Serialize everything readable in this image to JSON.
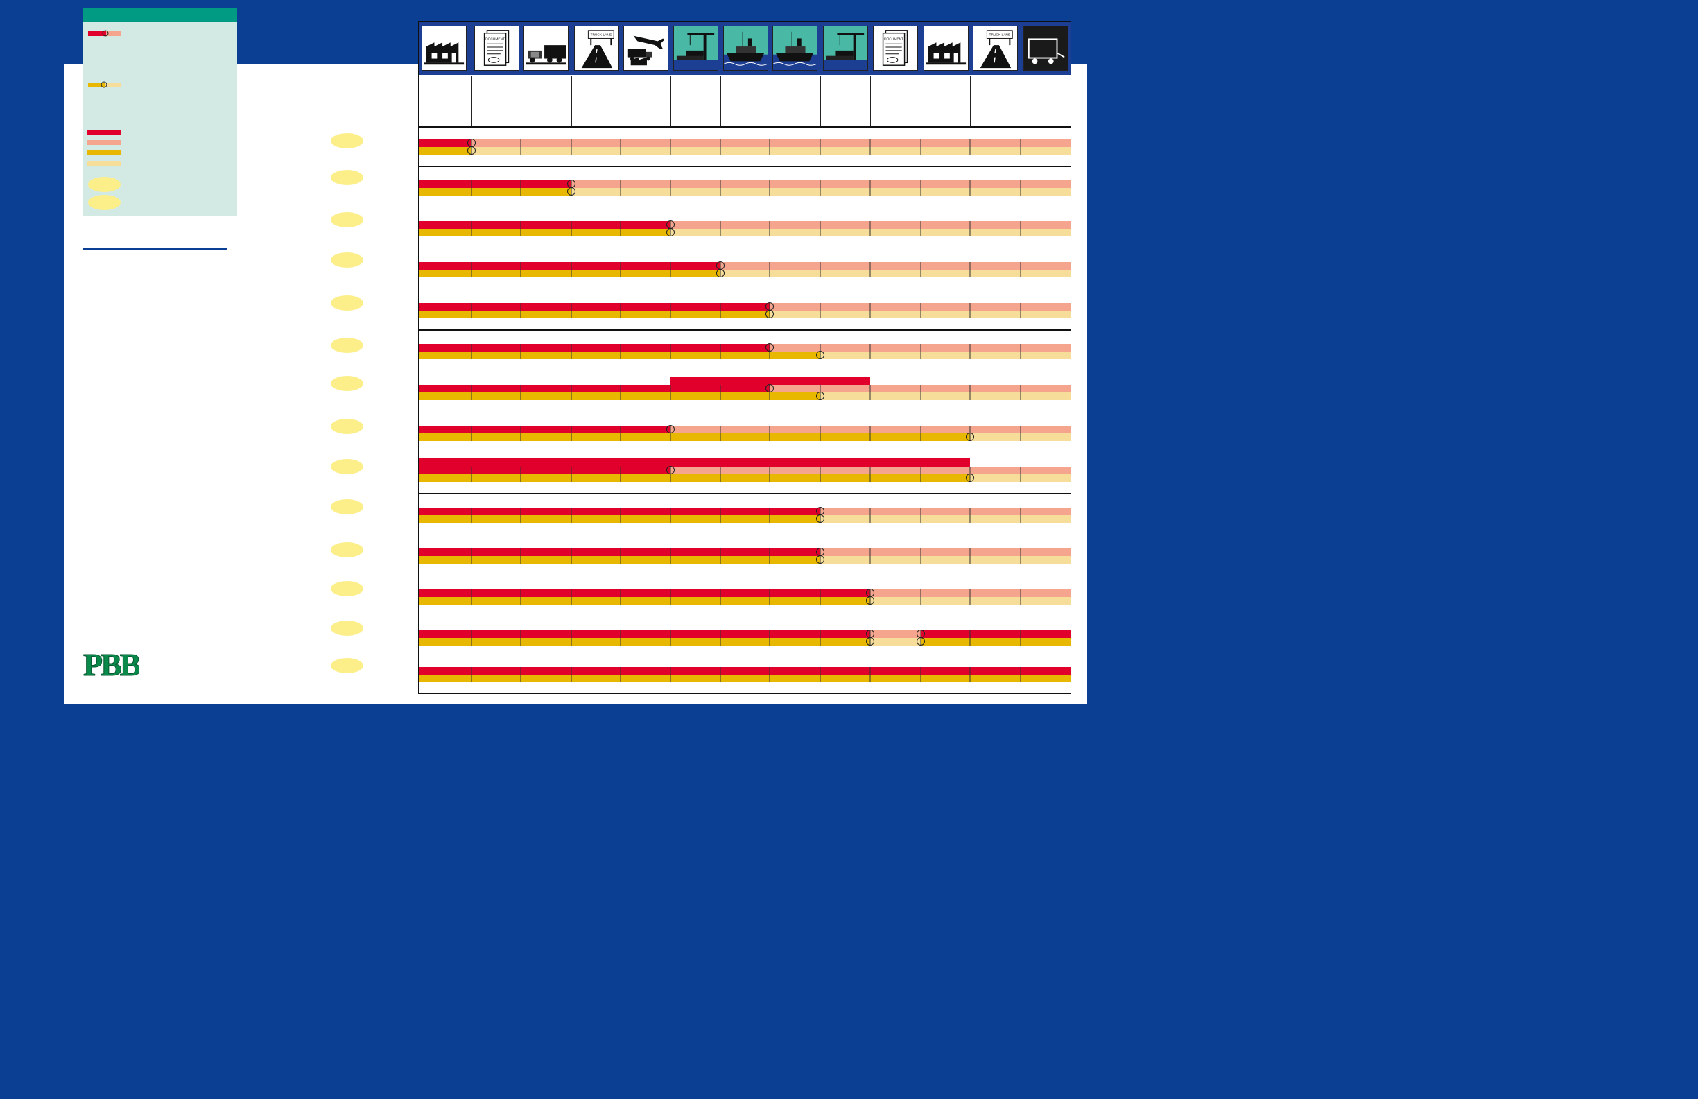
{
  "steps": [
    {
      "icon": "factory-icon",
      "theme": "light"
    },
    {
      "icon": "document-icon",
      "caption": "DOCUMENT",
      "theme": "light"
    },
    {
      "icon": "truck-trailer-icon",
      "theme": "light"
    },
    {
      "icon": "truck-lane-icon",
      "caption": "TRUCK LANE",
      "theme": "light"
    },
    {
      "icon": "airplane-truck-icon",
      "theme": "light"
    },
    {
      "icon": "port-crane-icon",
      "theme": "teal"
    },
    {
      "icon": "ship-icon",
      "theme": "teal"
    },
    {
      "icon": "ship-icon",
      "theme": "teal"
    },
    {
      "icon": "port-crane-icon",
      "theme": "teal"
    },
    {
      "icon": "document-icon",
      "caption": "DOCUMENT",
      "theme": "light"
    },
    {
      "icon": "factory-icon",
      "theme": "light"
    },
    {
      "icon": "truck-lane-icon",
      "caption": "TRUCK LANE",
      "theme": "light"
    },
    {
      "icon": "trailer-icon",
      "theme": "dark"
    }
  ],
  "rows": [
    {
      "cost_end": 1,
      "risk_end": 1
    },
    {
      "cost_end": 3,
      "risk_end": 3
    },
    {
      "cost_end": 5,
      "risk_end": 5
    },
    {
      "cost_end": 6,
      "risk_end": 6
    },
    {
      "cost_end": 7,
      "risk_end": 7
    },
    {
      "cost_end": 7,
      "risk_end": 8
    },
    {
      "cost_end": 7,
      "risk_end": 8,
      "extra_cost": [
        5,
        9
      ]
    },
    {
      "cost_end": 5,
      "risk_end": 11
    },
    {
      "cost_end": 5,
      "risk_end": 11,
      "extra_cost": [
        0,
        11
      ]
    },
    {
      "cost_end": 8,
      "risk_end": 8
    },
    {
      "cost_end": 8,
      "risk_end": 8
    },
    {
      "cost_end": 9,
      "risk_end": 9
    },
    {
      "cost_end": 9,
      "risk_end": 9,
      "gap_end": 10
    },
    {
      "cost_end": 13,
      "risk_end": 13
    }
  ],
  "group_separators_after_row": [
    0,
    4,
    8
  ],
  "colors": {
    "cost_dark": "#e0002b",
    "cost_light": "#f5a58e",
    "risk_dark": "#e8b800",
    "risk_light": "#f6de9a",
    "legend_bg": "#d3e9e3",
    "accent_teal": "#009b82",
    "brand_blue": "#0a3f93",
    "marker_yellow": "#fcef8a"
  },
  "logo": {
    "text": "PBB",
    "color": "#0a8a4a"
  }
}
